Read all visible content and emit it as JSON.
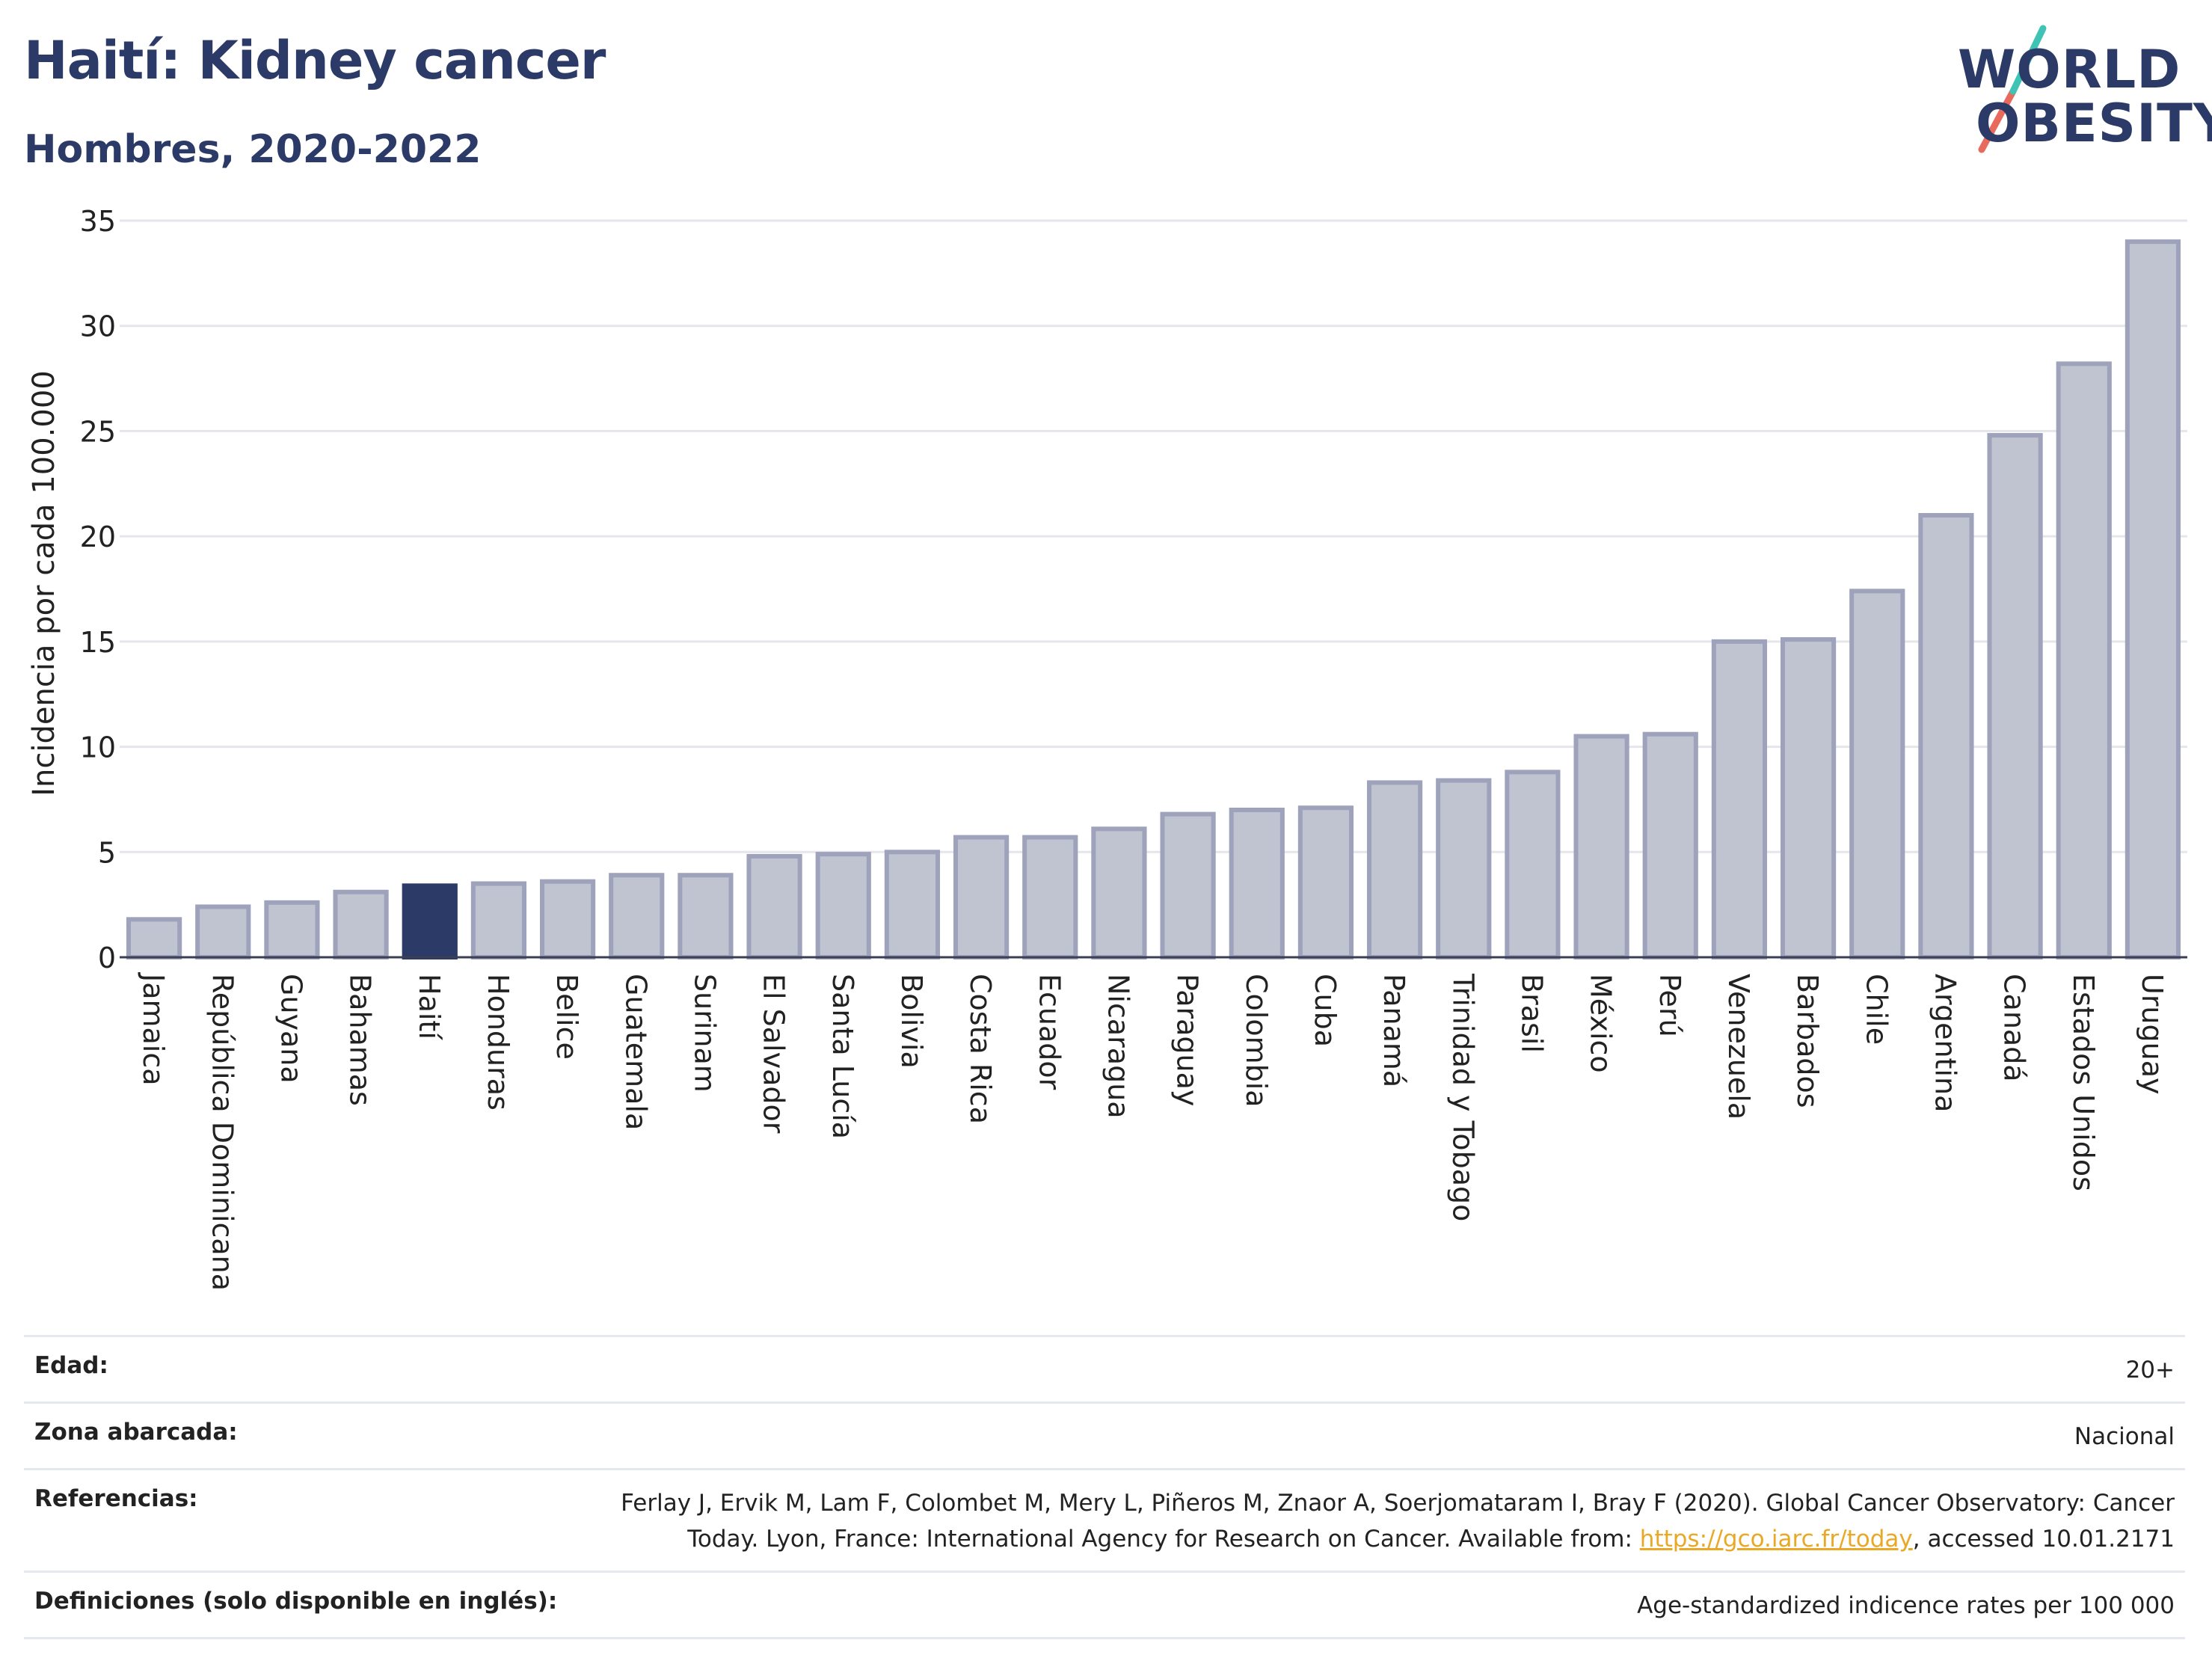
{
  "header": {
    "title": "Haití: Kidney cancer",
    "subtitle": "Hombres, 2020-2022"
  },
  "logo": {
    "line1": "WORLD",
    "line2": "OBESITY"
  },
  "colors": {
    "bar": "#c0c3d0",
    "bar_border": "#9ea2bb",
    "highlight": "#2b3a67",
    "grid": "#e4e6ec",
    "axis_text": "#222222"
  },
  "chart_data": {
    "type": "bar",
    "ylabel": "Incidencia por cada 100.000",
    "ylim": [
      0,
      35
    ],
    "yticks": [
      0,
      5,
      10,
      15,
      20,
      25,
      30,
      35
    ],
    "grid": true,
    "highlight": "Haití",
    "categories": [
      "Jamaica",
      "República Dominicana",
      "Guyana",
      "Bahamas",
      "Haití",
      "Honduras",
      "Belice",
      "Guatemala",
      "Surinam",
      "El Salvador",
      "Santa Lucía",
      "Bolivia",
      "Costa Rica",
      "Ecuador",
      "Nicaragua",
      "Paraguay",
      "Colombia",
      "Cuba",
      "Panamá",
      "Trinidad y Tobago",
      "Brasil",
      "México",
      "Perú",
      "Venezuela",
      "Barbados",
      "Chile",
      "Argentina",
      "Canadá",
      "Estados Unidos",
      "Uruguay"
    ],
    "values": [
      1.8,
      2.4,
      2.6,
      3.1,
      3.4,
      3.5,
      3.6,
      3.9,
      3.9,
      4.8,
      4.9,
      5.0,
      5.7,
      5.7,
      6.1,
      6.8,
      7.0,
      7.1,
      8.3,
      8.4,
      8.8,
      10.5,
      10.6,
      15.0,
      15.1,
      17.4,
      21.0,
      24.8,
      28.2,
      34.0
    ]
  },
  "meta": [
    {
      "label": "Edad:",
      "value": "20+"
    },
    {
      "label": "Zona abarcada:",
      "value": "Nacional"
    },
    {
      "label": "Referencias:",
      "value_pre": "Ferlay J, Ervik M, Lam F, Colombet M, Mery L, Piñeros M, Znaor A, Soerjomataram I, Bray F (2020). Global Cancer Observatory: Cancer Today. Lyon, France: International Agency for Research on Cancer. Available from: ",
      "link": "https://gco.iarc.fr/today",
      "value_post": ", accessed 10.01.2171"
    },
    {
      "label": "Definiciones (solo disponible en inglés):",
      "value": "Age-standardized indicence rates per 100 000"
    }
  ]
}
